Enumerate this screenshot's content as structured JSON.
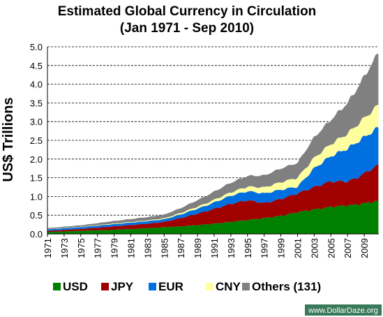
{
  "chart_data": {
    "type": "area",
    "stacked": true,
    "title": "Estimated Global Currency in Circulation",
    "subtitle": "(Jan 1971 - Sep 2010)",
    "ylabel": "US$ Trillions",
    "xlabel": "",
    "ylim": [
      0,
      5.0
    ],
    "yticks": [
      "0.0",
      "0.5",
      "1.0",
      "1.5",
      "2.0",
      "2.5",
      "3.0",
      "3.5",
      "4.0",
      "4.5",
      "5.0"
    ],
    "xlim": [
      1971,
      2010.75
    ],
    "xticks": [
      "1971",
      "1973",
      "1975",
      "1977",
      "1979",
      "1981",
      "1983",
      "1985",
      "1987",
      "1989",
      "1991",
      "1993",
      "1995",
      "1997",
      "1999",
      "2001",
      "2003",
      "2005",
      "2007",
      "2009"
    ],
    "grid": "horizontal-dashed",
    "legend_position": "bottom",
    "x": [
      1971,
      1975,
      1979,
      1983,
      1985,
      1987,
      1990,
      1993,
      1995,
      1997,
      1999,
      2001,
      2003,
      2005,
      2007,
      2008,
      2010.7
    ],
    "series": [
      {
        "name": "USD",
        "color": "#008000",
        "values": [
          0.05,
          0.08,
          0.11,
          0.15,
          0.18,
          0.2,
          0.25,
          0.32,
          0.37,
          0.42,
          0.48,
          0.58,
          0.65,
          0.72,
          0.76,
          0.78,
          0.88
        ]
      },
      {
        "name": "JPY",
        "color": "#a00000",
        "values": [
          0.03,
          0.05,
          0.09,
          0.12,
          0.14,
          0.22,
          0.35,
          0.48,
          0.53,
          0.4,
          0.45,
          0.5,
          0.6,
          0.68,
          0.64,
          0.7,
          0.96
        ]
      },
      {
        "name": "EUR",
        "color": "#0070e0",
        "values": [
          0.04,
          0.05,
          0.06,
          0.07,
          0.07,
          0.1,
          0.15,
          0.22,
          0.24,
          0.26,
          0.25,
          0.18,
          0.5,
          0.68,
          0.88,
          0.95,
          1.0
        ]
      },
      {
        "name": "CNY",
        "color": "#ffffa0",
        "values": [
          0.005,
          0.01,
          0.015,
          0.02,
          0.025,
          0.04,
          0.06,
          0.09,
          0.12,
          0.16,
          0.2,
          0.24,
          0.28,
          0.32,
          0.4,
          0.45,
          0.6
        ]
      },
      {
        "name": "Others (131)",
        "color": "#808080",
        "values": [
          0.03,
          0.04,
          0.07,
          0.09,
          0.1,
          0.13,
          0.2,
          0.26,
          0.29,
          0.32,
          0.37,
          0.4,
          0.55,
          0.65,
          0.82,
          0.95,
          1.4
        ]
      }
    ]
  },
  "credit": "www.DollarDaze.org"
}
